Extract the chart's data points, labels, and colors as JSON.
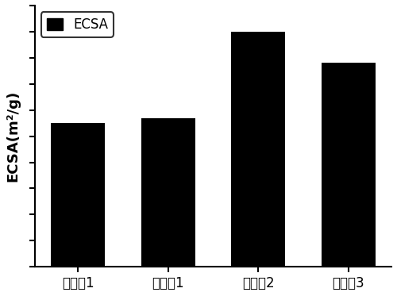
{
  "categories": [
    "对比例1",
    "实施例1",
    "实施例2",
    "实施例3"
  ],
  "values": [
    55,
    57,
    90,
    78
  ],
  "bar_color": "#000000",
  "ylabel": "ECSA(m²/g)",
  "legend_label": "ECSA",
  "background_color": "#ffffff",
  "bar_width": 0.6,
  "ylim": [
    0,
    100
  ],
  "tick_fontsize": 12,
  "ylabel_fontsize": 13,
  "legend_fontsize": 12,
  "edge_color": "#000000"
}
